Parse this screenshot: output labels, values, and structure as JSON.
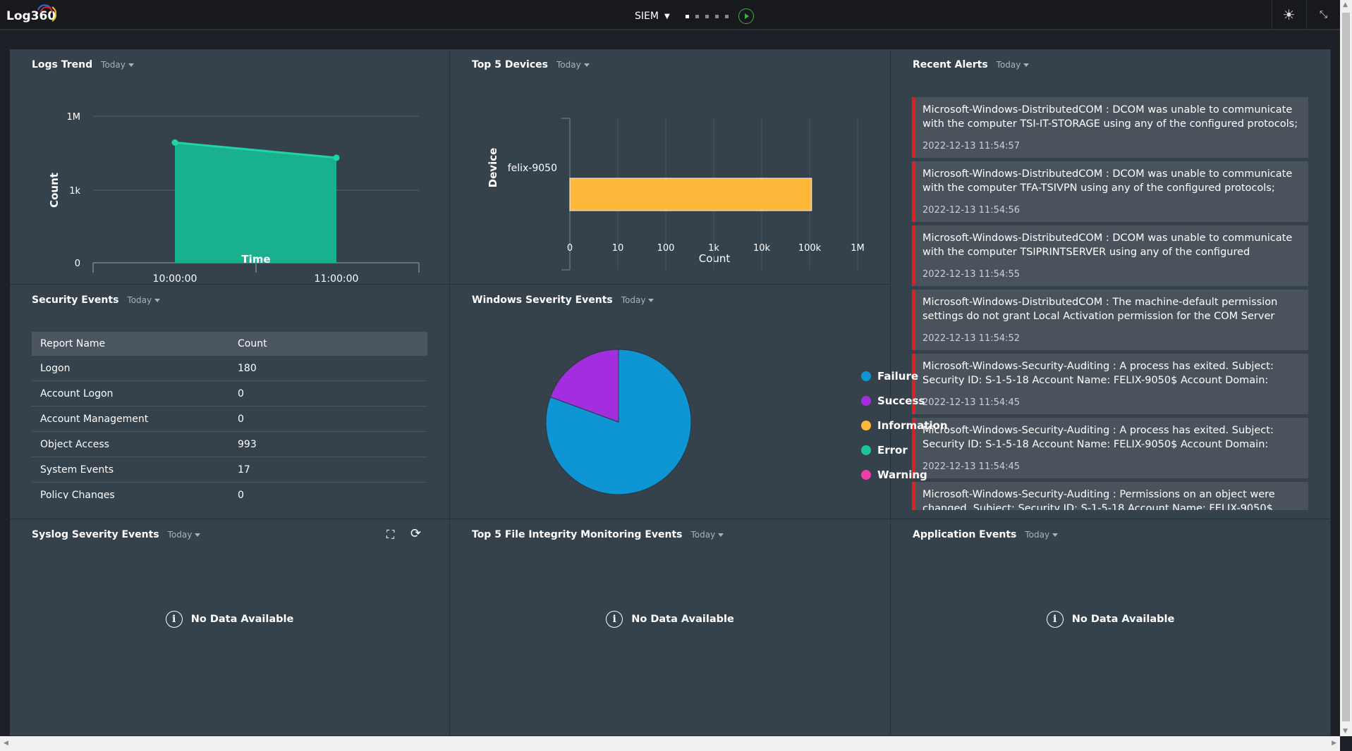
{
  "topbar": {
    "logo": "Log360",
    "module": "SIEM",
    "dashboard_pages": 5,
    "active_page": 1,
    "icons": [
      "theme-toggle-icon",
      "collapse-icon",
      "play-icon"
    ]
  },
  "filter_label": "Today",
  "panels": {
    "logs_trend": {
      "title": "Logs Trend",
      "filter": "Today"
    },
    "top_devices": {
      "title": "Top 5 Devices",
      "filter": "Today"
    },
    "recent_alerts": {
      "title": "Recent Alerts",
      "filter": "Today"
    },
    "security_events": {
      "title": "Security Events",
      "filter": "Today",
      "columns": [
        "Report Name",
        "Count"
      ],
      "rows": [
        [
          "Logon",
          "180"
        ],
        [
          "Account Logon",
          "0"
        ],
        [
          "Account Management",
          "0"
        ],
        [
          "Object Access",
          "993"
        ],
        [
          "System Events",
          "17"
        ],
        [
          "Policy Changes",
          "0"
        ]
      ]
    },
    "windows_severity": {
      "title": "Windows Severity Events",
      "filter": "Today"
    },
    "syslog_severity": {
      "title": "Syslog Severity Events",
      "filter": "Today",
      "no_data": "No Data Available"
    },
    "fim": {
      "title": "Top 5 File Integrity Monitoring Events",
      "filter": "Today",
      "no_data": "No Data Available"
    },
    "application": {
      "title": "Application Events",
      "filter": "Today",
      "no_data": "No Data Available"
    }
  },
  "alerts": [
    {
      "msg": "Microsoft-Windows-DistributedCOM : DCOM was unable to communicate with the computer TSI-IT-STORAGE using any of the configured protocols;",
      "ts": "2022-12-13 11:54:57"
    },
    {
      "msg": "Microsoft-Windows-DistributedCOM : DCOM was unable to communicate with the computer TFA-TSIVPN using any of the configured protocols; requested by",
      "ts": "2022-12-13 11:54:56"
    },
    {
      "msg": "Microsoft-Windows-DistributedCOM : DCOM was unable to communicate with the computer TSIPRINTSERVER using any of the configured protocols;",
      "ts": "2022-12-13 11:54:55"
    },
    {
      "msg": "Microsoft-Windows-DistributedCOM : The machine-default permission settings do not grant Local Activation permission for the COM Server application with",
      "ts": "2022-12-13 11:54:52"
    },
    {
      "msg": "Microsoft-Windows-Security-Auditing : A process has exited. Subject: Security ID: S-1-5-18 Account Name: FELIX-9050$ Account Domain: ZOHOCORP",
      "ts": "2022-12-13 11:54:45"
    },
    {
      "msg": "Microsoft-Windows-Security-Auditing : A process has exited. Subject: Security ID: S-1-5-18 Account Name: FELIX-9050$ Account Domain: ZOHOCORP",
      "ts": "2022-12-13 11:54:45"
    },
    {
      "msg": "Microsoft-Windows-Security-Auditing : Permissions on an object were changed. Subject: Security ID: S-1-5-18 Account Name: FELIX-9050$",
      "ts": ""
    }
  ],
  "chart_data": [
    {
      "type": "area",
      "title": "Logs Trend",
      "xlabel": "Time",
      "ylabel": "Count",
      "yscale": "log",
      "yticks": [
        "0",
        "1k",
        "1M"
      ],
      "x": [
        "10:00:00",
        "11:00:00"
      ],
      "values": [
        84000,
        20000
      ],
      "color": "#19b08f",
      "line_color": "#1fd4a5"
    },
    {
      "type": "bar",
      "orientation": "horizontal",
      "title": "Top 5 Devices",
      "xlabel": "Count",
      "ylabel": "Device",
      "xscale": "log",
      "xticks": [
        "0",
        "10",
        "100",
        "1k",
        "10k",
        "100k",
        "1M"
      ],
      "categories": [
        "felix-9050"
      ],
      "values": [
        110000
      ],
      "color": "#ffb73a"
    },
    {
      "type": "pie",
      "title": "Windows Severity Events",
      "legend": "right",
      "slices": [
        {
          "name": "Failure",
          "value": 80.6,
          "color": "#0d96d3"
        },
        {
          "name": "Success",
          "value": 19.4,
          "color": "#a22ee0"
        },
        {
          "name": "Information",
          "value": 0,
          "color": "#ffb73a"
        },
        {
          "name": "Error",
          "value": 0,
          "color": "#1cc49a"
        },
        {
          "name": "Warning",
          "value": 0,
          "color": "#ee3ea8"
        }
      ]
    }
  ]
}
